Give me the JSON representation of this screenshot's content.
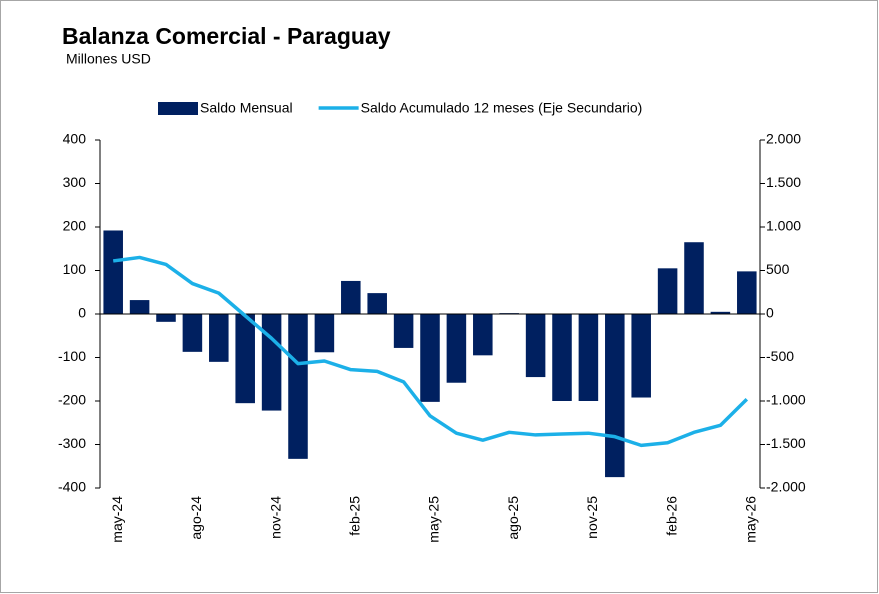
{
  "chart_data": {
    "type": "bar_line",
    "title": "Balanza Comercial - Paraguay",
    "subtitle": "Millones USD",
    "categories": [
      "may-24",
      null,
      null,
      "ago-24",
      null,
      null,
      "nov-24",
      null,
      null,
      "feb-25",
      null,
      null,
      "may-25",
      null,
      null,
      "ago-25",
      null,
      null,
      "nov-25",
      null,
      null,
      "feb-26",
      null,
      null,
      "may-26"
    ],
    "series": [
      {
        "name": "Saldo Mensual",
        "color": "#002060",
        "type": "bar",
        "values": [
          192,
          32,
          -18,
          -87,
          -110,
          -205,
          -222,
          -333,
          -88,
          76,
          48,
          -78,
          -202,
          -158,
          -95,
          2,
          -145,
          -200,
          -200,
          -375,
          -192,
          105,
          165,
          5,
          98
        ]
      },
      {
        "name": "Saldo Acumulado 12 meses (Eje Secundario)",
        "color": "#1cb0e8",
        "type": "line",
        "axis": "y2",
        "values": [
          610,
          650,
          570,
          350,
          240,
          -20,
          -280,
          -570,
          -540,
          -640,
          -660,
          -780,
          -1170,
          -1370,
          -1450,
          -1360,
          -1390,
          -1380,
          -1370,
          -1410,
          -1510,
          -1480,
          -1360,
          -1280,
          -980
        ]
      }
    ],
    "ylim": [
      -400,
      400
    ],
    "yticks": [
      -400,
      -300,
      -200,
      -100,
      0,
      100,
      200,
      300,
      400
    ],
    "y2lim": [
      -2000,
      2000
    ],
    "y2ticks": [
      {
        "value": -2000,
        "label": "-2.000"
      },
      {
        "value": -1500,
        "label": "-1.500"
      },
      {
        "value": -1000,
        "label": "-1.000"
      },
      -500,
      0,
      500,
      {
        "value": 1000,
        "label": "1.000"
      },
      {
        "value": 1500,
        "label": "1.500"
      },
      {
        "value": 2000,
        "label": "2.000"
      }
    ],
    "legend": "top"
  }
}
